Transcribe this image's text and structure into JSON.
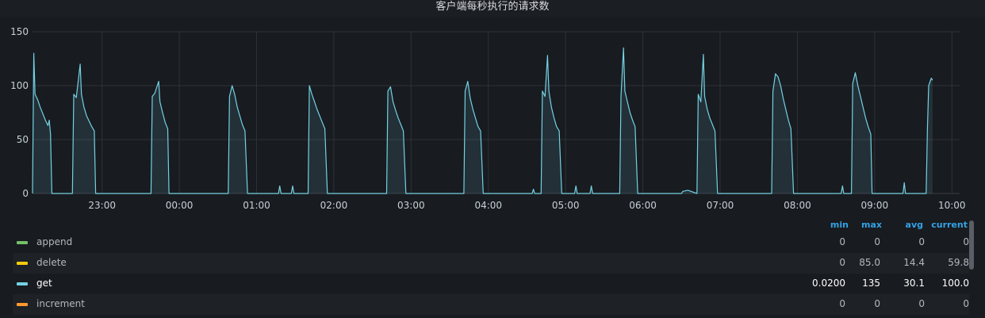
{
  "panel": {
    "title": "客户端每秒执行的请求数"
  },
  "chart_data": {
    "type": "area",
    "title": "客户端每秒执行的请求数",
    "ylim": [
      0,
      150
    ],
    "yticks": [
      0,
      50,
      100,
      150
    ],
    "xlim": [
      22.1,
      10.1
    ],
    "xticks": [
      "23:00",
      "00:00",
      "01:00",
      "02:00",
      "03:00",
      "04:00",
      "05:00",
      "06:00",
      "07:00",
      "08:00",
      "09:00",
      "10:00"
    ],
    "grid": true,
    "series": [
      {
        "name": "get",
        "color": "#73d1e4",
        "points": [
          [
            "22:06",
            0
          ],
          [
            "22:07",
            130
          ],
          [
            "22:08",
            92
          ],
          [
            "22:10",
            87
          ],
          [
            "22:12",
            80
          ],
          [
            "22:14",
            74
          ],
          [
            "22:16",
            68
          ],
          [
            "22:18",
            63
          ],
          [
            "22:19",
            68
          ],
          [
            "22:20",
            55
          ],
          [
            "22:21",
            0
          ],
          [
            "22:37",
            0
          ],
          [
            "22:38",
            92
          ],
          [
            "22:40",
            89
          ],
          [
            "22:43",
            120
          ],
          [
            "22:44",
            92
          ],
          [
            "22:46",
            80
          ],
          [
            "22:48",
            72
          ],
          [
            "22:50",
            67
          ],
          [
            "22:52",
            62
          ],
          [
            "22:54",
            58
          ],
          [
            "22:55",
            0
          ],
          [
            "23:38",
            0
          ],
          [
            "23:39",
            90
          ],
          [
            "23:41",
            93
          ],
          [
            "23:44",
            104
          ],
          [
            "23:45",
            85
          ],
          [
            "23:47",
            75
          ],
          [
            "23:49",
            66
          ],
          [
            "23:51",
            60
          ],
          [
            "23:52",
            0
          ],
          [
            "00:38",
            0
          ],
          [
            "00:39",
            90
          ],
          [
            "00:41",
            100
          ],
          [
            "00:43",
            92
          ],
          [
            "00:45",
            80
          ],
          [
            "00:47",
            72
          ],
          [
            "00:49",
            64
          ],
          [
            "00:51",
            58
          ],
          [
            "00:53",
            0
          ],
          [
            "01:17",
            0
          ],
          [
            "01:18",
            7
          ],
          [
            "01:19",
            0
          ],
          [
            "01:27",
            0
          ],
          [
            "01:28",
            7
          ],
          [
            "01:29",
            0
          ],
          [
            "01:40",
            0
          ],
          [
            "01:41",
            100
          ],
          [
            "01:43",
            92
          ],
          [
            "01:45",
            85
          ],
          [
            "01:47",
            78
          ],
          [
            "01:49",
            72
          ],
          [
            "01:51",
            66
          ],
          [
            "01:53",
            60
          ],
          [
            "01:55",
            0
          ],
          [
            "02:41",
            0
          ],
          [
            "02:42",
            95
          ],
          [
            "02:44",
            99
          ],
          [
            "02:46",
            85
          ],
          [
            "02:48",
            77
          ],
          [
            "02:50",
            70
          ],
          [
            "02:52",
            64
          ],
          [
            "02:54",
            58
          ],
          [
            "02:56",
            0
          ],
          [
            "03:41",
            0
          ],
          [
            "03:42",
            95
          ],
          [
            "03:44",
            104
          ],
          [
            "03:46",
            88
          ],
          [
            "03:48",
            78
          ],
          [
            "03:50",
            70
          ],
          [
            "03:52",
            62
          ],
          [
            "03:54",
            58
          ],
          [
            "03:56",
            0
          ],
          [
            "04:34",
            0
          ],
          [
            "04:35",
            4
          ],
          [
            "04:36",
            0
          ],
          [
            "04:41",
            0
          ],
          [
            "04:42",
            95
          ],
          [
            "04:44",
            90
          ],
          [
            "04:46",
            128
          ],
          [
            "04:47",
            95
          ],
          [
            "04:49",
            80
          ],
          [
            "04:51",
            70
          ],
          [
            "04:53",
            62
          ],
          [
            "04:55",
            58
          ],
          [
            "04:57",
            0
          ],
          [
            "05:07",
            0
          ],
          [
            "05:08",
            7
          ],
          [
            "05:09",
            0
          ],
          [
            "05:19",
            0
          ],
          [
            "05:20",
            7
          ],
          [
            "05:21",
            0
          ],
          [
            "05:42",
            0
          ],
          [
            "05:43",
            90
          ],
          [
            "05:45",
            135
          ],
          [
            "05:46",
            95
          ],
          [
            "05:48",
            85
          ],
          [
            "05:50",
            75
          ],
          [
            "05:52",
            68
          ],
          [
            "05:54",
            62
          ],
          [
            "05:56",
            0
          ],
          [
            "06:30",
            0
          ],
          [
            "06:31",
            2
          ],
          [
            "06:35",
            3
          ],
          [
            "06:42",
            0
          ],
          [
            "06:43",
            92
          ],
          [
            "06:45",
            85
          ],
          [
            "06:47",
            129
          ],
          [
            "06:48",
            90
          ],
          [
            "06:50",
            78
          ],
          [
            "06:52",
            70
          ],
          [
            "06:54",
            64
          ],
          [
            "06:56",
            58
          ],
          [
            "06:58",
            0
          ],
          [
            "07:40",
            0
          ],
          [
            "07:41",
            95
          ],
          [
            "07:43",
            111
          ],
          [
            "07:45",
            108
          ],
          [
            "07:47",
            100
          ],
          [
            "07:49",
            88
          ],
          [
            "07:51",
            78
          ],
          [
            "07:53",
            68
          ],
          [
            "07:55",
            60
          ],
          [
            "07:57",
            0
          ],
          [
            "08:34",
            0
          ],
          [
            "08:35",
            7
          ],
          [
            "08:36",
            0
          ],
          [
            "08:42",
            0
          ],
          [
            "08:43",
            102
          ],
          [
            "08:45",
            112
          ],
          [
            "08:47",
            100
          ],
          [
            "08:49",
            90
          ],
          [
            "08:51",
            80
          ],
          [
            "08:53",
            70
          ],
          [
            "08:55",
            62
          ],
          [
            "08:57",
            55
          ],
          [
            "08:58",
            0
          ],
          [
            "09:22",
            0
          ],
          [
            "09:23",
            10
          ],
          [
            "09:24",
            0
          ],
          [
            "09:40",
            0
          ],
          [
            "09:41",
            60
          ],
          [
            "09:42",
            100
          ],
          [
            "09:44",
            107
          ],
          [
            "09:45",
            105
          ]
        ]
      },
      {
        "name": "delete",
        "color": "#f2cc0c",
        "points": []
      },
      {
        "name": "append",
        "color": "#73bf69",
        "points": []
      },
      {
        "name": "increment",
        "color": "#ff9830",
        "points": []
      }
    ]
  },
  "legend": {
    "headers": [
      "min",
      "max",
      "avg",
      "current"
    ],
    "rows": [
      {
        "name": "append",
        "color": "#73bf69",
        "values": [
          "0",
          "0",
          "0",
          "0"
        ]
      },
      {
        "name": "delete",
        "color": "#f2cc0c",
        "values": [
          "0",
          "85.0",
          "14.4",
          "59.8"
        ]
      },
      {
        "name": "get",
        "color": "#73d1e4",
        "values": [
          "0.0200",
          "135",
          "30.1",
          "100.0"
        ]
      },
      {
        "name": "increment",
        "color": "#ff9830",
        "values": [
          "0",
          "0",
          "0",
          "0"
        ]
      }
    ]
  }
}
